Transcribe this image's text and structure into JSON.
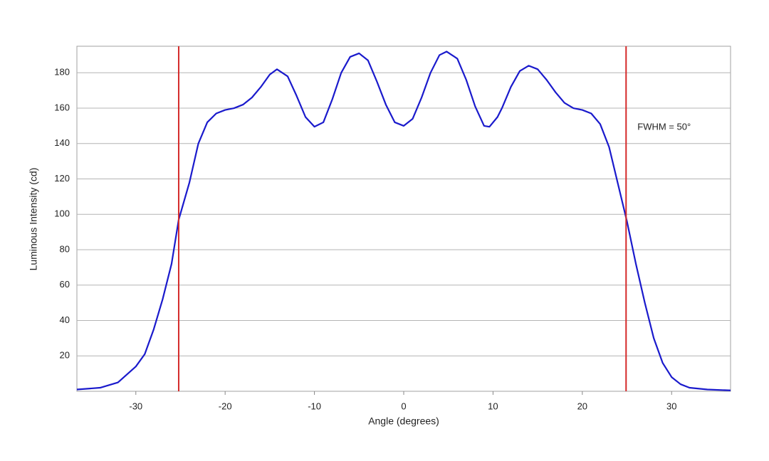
{
  "chart_data": {
    "type": "line",
    "x_label": "Angle (degrees)",
    "y_label": "Luminous Intensity (cd)",
    "annotation": "FWHM = 50°",
    "xlim": [
      -36.6,
      36.6
    ],
    "xticks": [
      -30,
      -20,
      -10,
      0,
      10,
      20,
      30
    ],
    "ylim": [
      0,
      195
    ],
    "yticks": [
      20,
      40,
      60,
      80,
      100,
      120,
      140,
      160,
      180
    ],
    "grid": true,
    "vlines": [
      -25.2,
      24.9
    ],
    "vline_color": "#d42a2a",
    "series": [
      {
        "color": "#1a1acc",
        "x": [
          -36.6,
          -34,
          -32,
          -30,
          -29,
          -28,
          -27,
          -26,
          -25.2,
          -24,
          -23,
          -22,
          -21,
          -20,
          -19,
          -18,
          -17,
          -16,
          -15,
          -14.2,
          -13,
          -12,
          -11,
          -10,
          -9,
          -8,
          -7,
          -6,
          -5,
          -4,
          -3,
          -2,
          -1,
          0,
          1,
          2,
          3,
          4,
          4.8,
          6,
          7,
          8,
          9,
          9.6,
          10.5,
          11,
          12,
          13,
          14,
          15,
          16,
          17,
          18,
          19,
          20,
          21,
          22,
          23,
          24,
          25,
          26,
          27,
          28,
          29,
          30,
          31,
          32,
          34,
          36.6
        ],
        "values": [
          1,
          2,
          5,
          14,
          21,
          35,
          52,
          72,
          97,
          118,
          140,
          152,
          157,
          159,
          160,
          162,
          166,
          172,
          179,
          182,
          178,
          167,
          155,
          149.5,
          152,
          165,
          180,
          189,
          191,
          187,
          175,
          162,
          152,
          150,
          154,
          166,
          180,
          190,
          192,
          188,
          176,
          161,
          150,
          149.5,
          155,
          160,
          172,
          181,
          184,
          182,
          176,
          169,
          163,
          160,
          159,
          157,
          151,
          138,
          117,
          96,
          72,
          50,
          30,
          16,
          8,
          4,
          2,
          1,
          0.5
        ]
      }
    ]
  }
}
